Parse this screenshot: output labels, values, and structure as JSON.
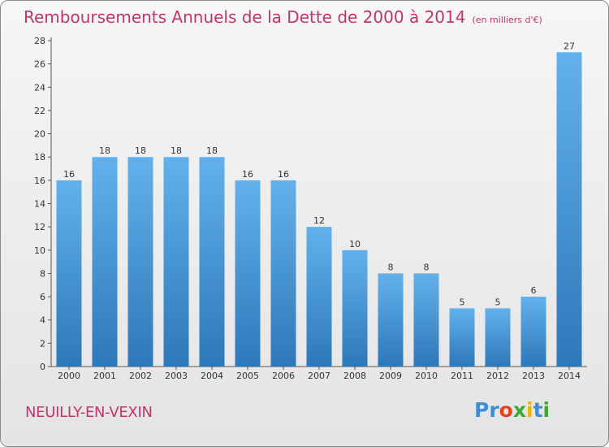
{
  "title": "Remboursements Annuels de la Dette de 2000 à 2014",
  "unit": "(en milliers d'€)",
  "commune": "NEUILLY-EN-VEXIN",
  "logo": {
    "letters": [
      "P",
      "r",
      "o",
      "x",
      "i",
      "t",
      "i"
    ],
    "colors": [
      "#3c8ed6",
      "#3c8ed6",
      "#e8421c",
      "#3aa935",
      "#f4b400",
      "#3c8ed6",
      "#3aa935"
    ]
  },
  "colors": {
    "bar_light": "#62b1ec",
    "bar_dark": "#2d78b9",
    "title": "#c0356b"
  },
  "chart_data": {
    "type": "bar",
    "title": "Remboursements Annuels de la Dette de 2000 à 2014",
    "ylabel": "en milliers d'€",
    "xlabel": "",
    "categories": [
      "2000",
      "2001",
      "2002",
      "2003",
      "2004",
      "2005",
      "2006",
      "2007",
      "2008",
      "2009",
      "2010",
      "2011",
      "2012",
      "2013",
      "2014"
    ],
    "values": [
      16,
      18,
      18,
      18,
      18,
      16,
      16,
      12,
      10,
      8,
      8,
      5,
      5,
      6,
      27
    ],
    "ylim": [
      0,
      28
    ],
    "yticks": [
      0,
      2,
      4,
      6,
      8,
      10,
      12,
      14,
      16,
      18,
      20,
      22,
      24,
      26,
      28
    ],
    "grid": false
  }
}
